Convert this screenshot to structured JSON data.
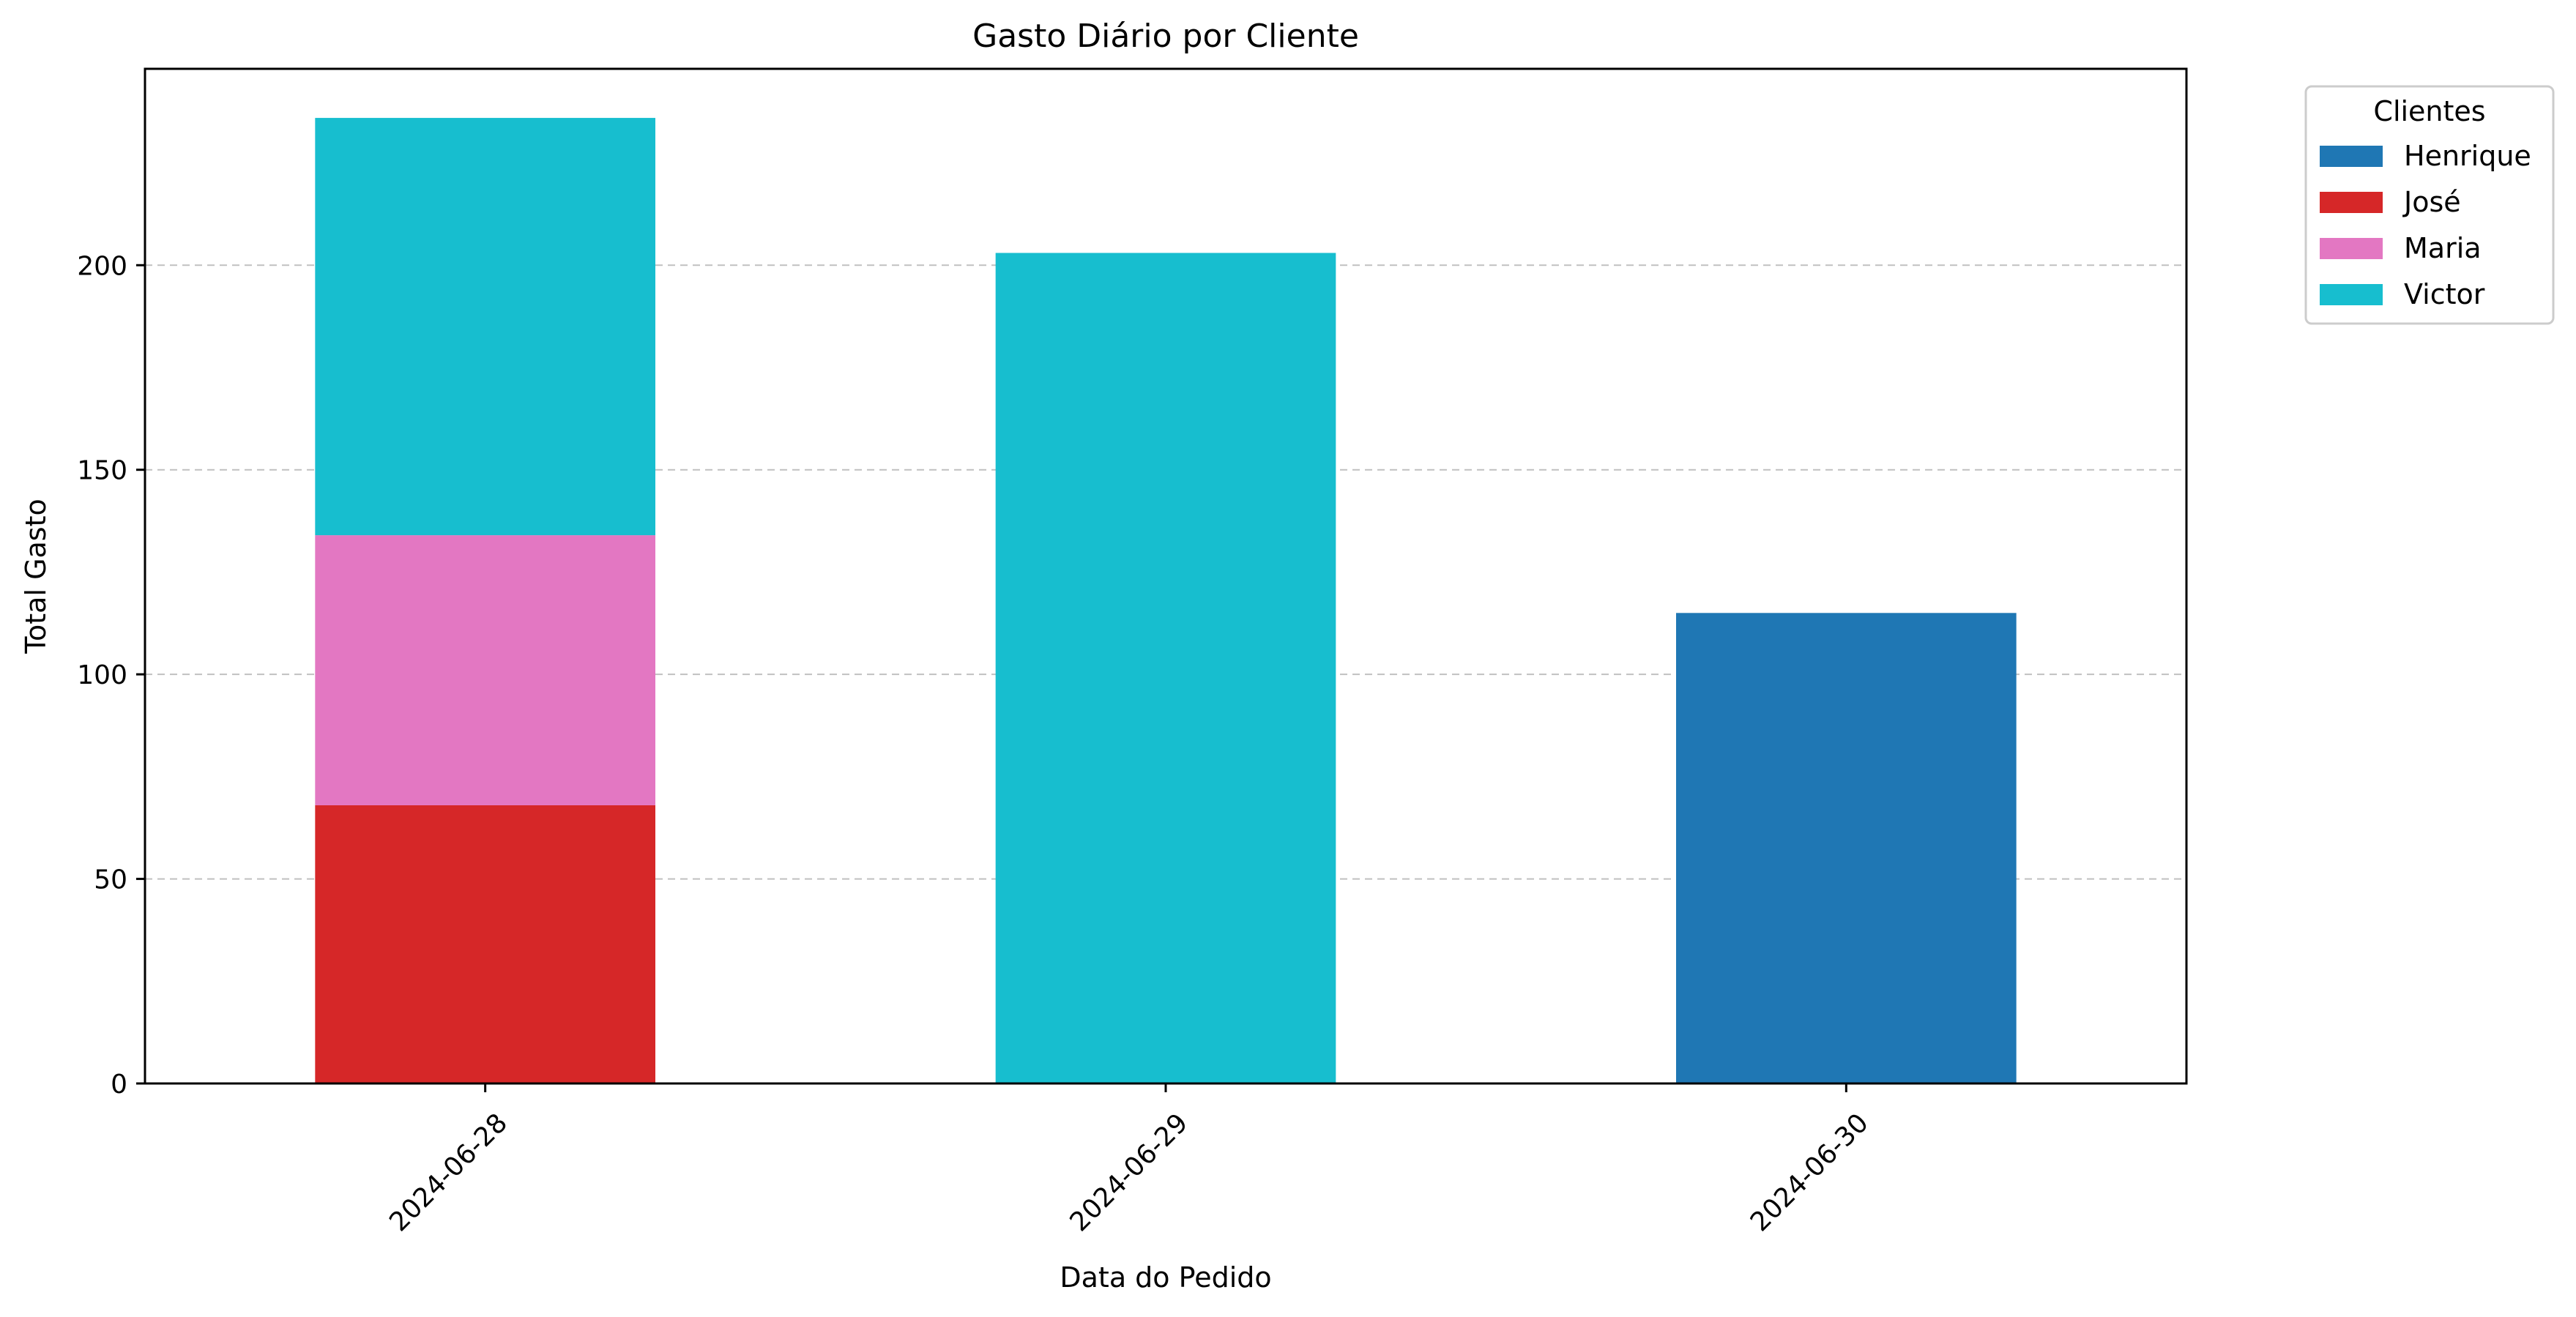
{
  "chart_data": {
    "type": "bar",
    "stacked": true,
    "title": "Gasto Diário por Cliente",
    "xlabel": "Data do Pedido",
    "ylabel": "Total Gasto",
    "categories": [
      "2024-06-28",
      "2024-06-29",
      "2024-06-30"
    ],
    "ylim": [
      0,
      248
    ],
    "yticks": [
      0,
      50,
      100,
      150,
      200
    ],
    "grid": "horizontal dashed",
    "legend": {
      "title": "Clientes",
      "placement": "outside top-right"
    },
    "series": [
      {
        "name": "Henrique",
        "color": "#1f77b4",
        "values": [
          0,
          0,
          115
        ]
      },
      {
        "name": "José",
        "color": "#d62728",
        "values": [
          68,
          0,
          0
        ]
      },
      {
        "name": "Maria",
        "color": "#e377c2",
        "values": [
          66,
          0,
          0
        ]
      },
      {
        "name": "Victor",
        "color": "#17becf",
        "values": [
          102,
          203,
          0
        ]
      }
    ]
  }
}
